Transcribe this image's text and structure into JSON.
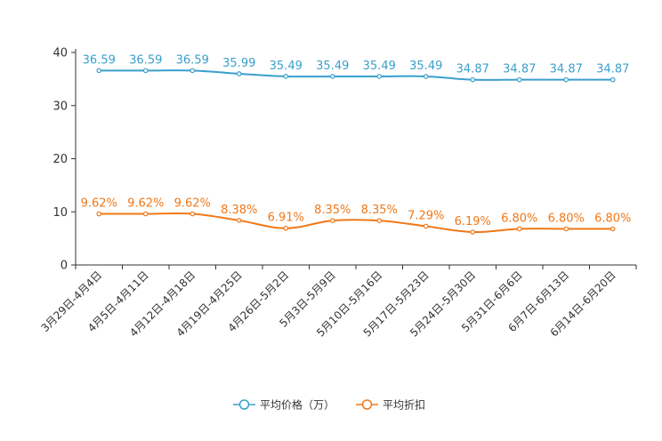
{
  "chart_data": {
    "type": "line",
    "categories": [
      "3月29日-4月4日",
      "4月5日-4月11日",
      "4月12日-4月18日",
      "4月19日-4月25日",
      "4月26日-5月2日",
      "5月3日-5月9日",
      "5月10日-5月16日",
      "5月17日-5月23日",
      "5月24日-5月30日",
      "5月31日-6月6日",
      "6月7日-6月13日",
      "6月14日-6月20日"
    ],
    "series": [
      {
        "name": "平均价格（万）",
        "color": "#3a9fcc",
        "values": [
          36.59,
          36.59,
          36.59,
          35.99,
          35.49,
          35.49,
          35.49,
          35.49,
          34.87,
          34.87,
          34.87,
          34.87
        ],
        "labels": [
          "36.59",
          "36.59",
          "36.59",
          "35.99",
          "35.49",
          "35.49",
          "35.49",
          "35.49",
          "34.87",
          "34.87",
          "34.87",
          "34.87"
        ]
      },
      {
        "name": "平均折扣",
        "color": "#f07818",
        "values": [
          9.62,
          9.62,
          9.62,
          8.38,
          6.91,
          8.35,
          8.35,
          7.29,
          6.19,
          6.8,
          6.8,
          6.8
        ],
        "labels": [
          "9.62%",
          "9.62%",
          "9.62%",
          "8.38%",
          "6.91%",
          "8.35%",
          "8.35%",
          "7.29%",
          "6.19%",
          "6.80%",
          "6.80%",
          "6.80%"
        ]
      }
    ],
    "ylim": [
      0,
      40
    ],
    "yticks": [
      0,
      10,
      20,
      30,
      40
    ],
    "title": "",
    "xlabel": "",
    "ylabel": "",
    "legend": "bottom-center",
    "grid": false
  }
}
